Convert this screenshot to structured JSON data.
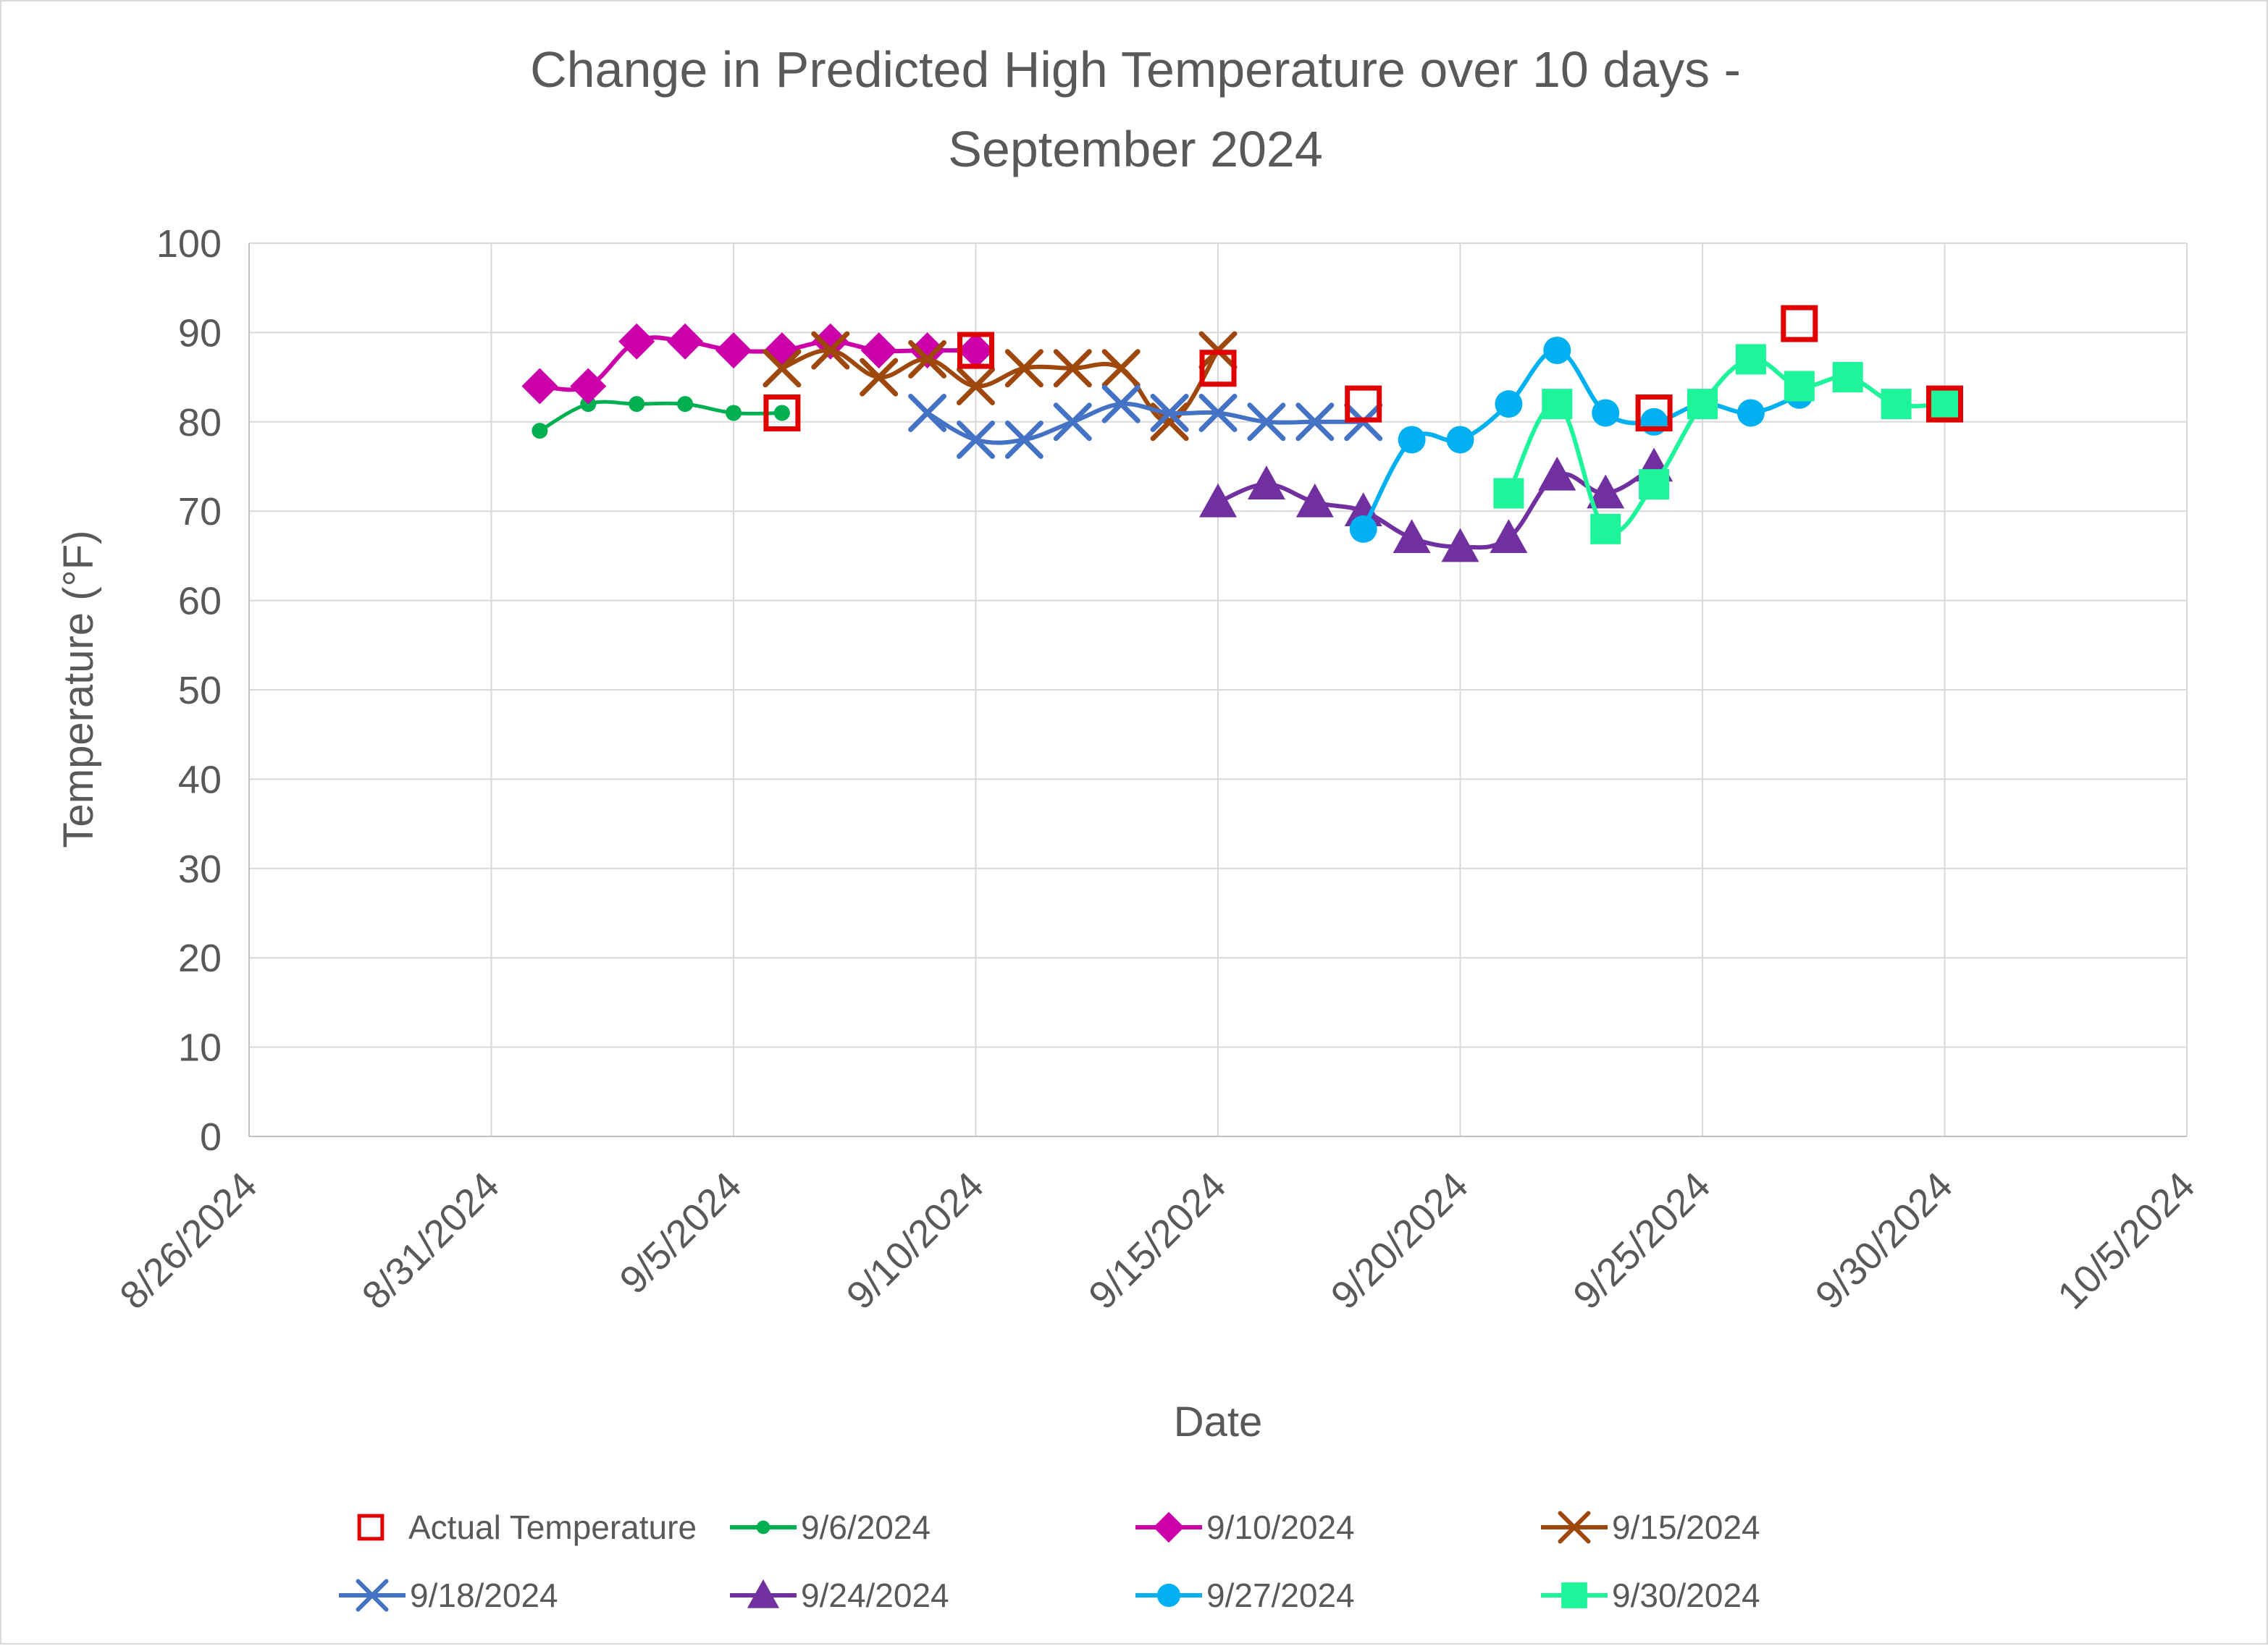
{
  "chart_data": {
    "type": "line",
    "title": [
      "Change in Predicted High Temperature over 10 days -",
      "September 2024"
    ],
    "xlabel": "Date",
    "ylabel": "Temperature (°F)",
    "xlim": [
      "2024-08-26",
      "2024-10-05"
    ],
    "ylim": [
      0,
      100
    ],
    "x_ticks": [
      "8/26/2024",
      "8/31/2024",
      "9/5/2024",
      "9/10/2024",
      "9/15/2024",
      "9/20/2024",
      "9/25/2024",
      "9/30/2024",
      "10/5/2024"
    ],
    "y_ticks": [
      0,
      10,
      20,
      30,
      40,
      50,
      60,
      70,
      80,
      90,
      100
    ],
    "grid": true,
    "legend_position": "bottom",
    "series": [
      {
        "name": "Actual Temperature",
        "color": "#e00000",
        "marker": "hollow-square",
        "line": false,
        "points": [
          [
            "2024-09-06",
            81
          ],
          [
            "2024-09-10",
            88
          ],
          [
            "2024-09-15",
            86
          ],
          [
            "2024-09-18",
            82
          ],
          [
            "2024-09-24",
            81
          ],
          [
            "2024-09-27",
            91
          ],
          [
            "2024-09-30",
            82
          ]
        ]
      },
      {
        "name": "9/6/2024",
        "color": "#00b050",
        "marker": "circle-small",
        "line": true,
        "points": [
          [
            "2024-09-01",
            79
          ],
          [
            "2024-09-02",
            82
          ],
          [
            "2024-09-03",
            82
          ],
          [
            "2024-09-04",
            82
          ],
          [
            "2024-09-05",
            81
          ],
          [
            "2024-09-06",
            81
          ]
        ]
      },
      {
        "name": "9/10/2024",
        "color": "#cc00a8",
        "marker": "diamond",
        "line": true,
        "points": [
          [
            "2024-09-01",
            84
          ],
          [
            "2024-09-02",
            84
          ],
          [
            "2024-09-03",
            89
          ],
          [
            "2024-09-04",
            89
          ],
          [
            "2024-09-05",
            88
          ],
          [
            "2024-09-06",
            88
          ],
          [
            "2024-09-07",
            89
          ],
          [
            "2024-09-08",
            88
          ],
          [
            "2024-09-09",
            88
          ],
          [
            "2024-09-10",
            88
          ]
        ]
      },
      {
        "name": "9/15/2024",
        "color": "#9e480e",
        "marker": "x",
        "line": true,
        "points": [
          [
            "2024-09-06",
            86
          ],
          [
            "2024-09-07",
            88
          ],
          [
            "2024-09-08",
            85
          ],
          [
            "2024-09-09",
            87
          ],
          [
            "2024-09-10",
            84
          ],
          [
            "2024-09-11",
            86
          ],
          [
            "2024-09-12",
            86
          ],
          [
            "2024-09-13",
            86
          ],
          [
            "2024-09-14",
            80
          ],
          [
            "2024-09-15",
            88
          ]
        ]
      },
      {
        "name": "9/18/2024",
        "color": "#4472c4",
        "marker": "x",
        "line": true,
        "points": [
          [
            "2024-09-09",
            81
          ],
          [
            "2024-09-10",
            78
          ],
          [
            "2024-09-11",
            78
          ],
          [
            "2024-09-12",
            80
          ],
          [
            "2024-09-13",
            82
          ],
          [
            "2024-09-14",
            81
          ],
          [
            "2024-09-15",
            81
          ],
          [
            "2024-09-16",
            80
          ],
          [
            "2024-09-17",
            80
          ],
          [
            "2024-09-18",
            80
          ]
        ]
      },
      {
        "name": "9/24/2024",
        "color": "#7030a0",
        "marker": "triangle",
        "line": true,
        "points": [
          [
            "2024-09-15",
            71
          ],
          [
            "2024-09-16",
            73
          ],
          [
            "2024-09-17",
            71
          ],
          [
            "2024-09-18",
            70
          ],
          [
            "2024-09-19",
            67
          ],
          [
            "2024-09-20",
            66
          ],
          [
            "2024-09-21",
            67
          ],
          [
            "2024-09-22",
            74
          ],
          [
            "2024-09-23",
            72
          ],
          [
            "2024-09-24",
            75
          ]
        ]
      },
      {
        "name": "9/27/2024",
        "color": "#00b0f0",
        "marker": "circle",
        "line": true,
        "points": [
          [
            "2024-09-18",
            68
          ],
          [
            "2024-09-19",
            78
          ],
          [
            "2024-09-20",
            78
          ],
          [
            "2024-09-21",
            82
          ],
          [
            "2024-09-22",
            88
          ],
          [
            "2024-09-23",
            81
          ],
          [
            "2024-09-24",
            80
          ],
          [
            "2024-09-25",
            82
          ],
          [
            "2024-09-26",
            81
          ],
          [
            "2024-09-27",
            83
          ]
        ]
      },
      {
        "name": "9/30/2024",
        "color": "#1ef59a",
        "marker": "square",
        "line": true,
        "points": [
          [
            "2024-09-21",
            72
          ],
          [
            "2024-09-22",
            82
          ],
          [
            "2024-09-23",
            68
          ],
          [
            "2024-09-24",
            73
          ],
          [
            "2024-09-25",
            82
          ],
          [
            "2024-09-26",
            87
          ],
          [
            "2024-09-27",
            84
          ],
          [
            "2024-09-28",
            85
          ],
          [
            "2024-09-29",
            82
          ],
          [
            "2024-09-30",
            82
          ]
        ]
      }
    ]
  }
}
